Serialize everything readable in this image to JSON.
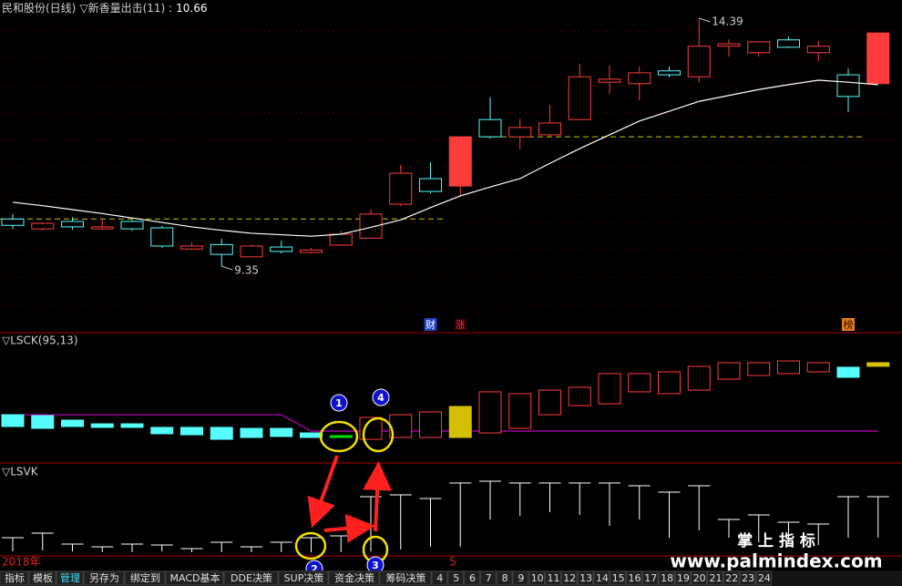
{
  "header": {
    "title": "民和股份(日线)",
    "indicator": "▽新香量出击(11) :",
    "value": 10.66
  },
  "chart_data": [
    {
      "type": "candlestick",
      "categories": [
        "2018年",
        null,
        null,
        null,
        null,
        null,
        null,
        null,
        null,
        null,
        null,
        null,
        null,
        null,
        null,
        "5",
        null,
        null,
        null,
        null,
        null,
        null,
        null,
        null,
        null,
        null,
        null,
        null,
        null,
        null
      ],
      "open": [
        10.31,
        10.11,
        10.26,
        10.11,
        10.26,
        10.13,
        9.7,
        9.79,
        9.54,
        9.74,
        9.63,
        9.78,
        9.92,
        10.61,
        11.13,
        10.98,
        12.33,
        11.98,
        12.02,
        12.33,
        13.09,
        13.06,
        13.32,
        13.2,
        13.82,
        13.69,
        13.95,
        13.69,
        13.24,
        13.06
      ],
      "high": [
        10.41,
        10.24,
        10.35,
        10.31,
        10.29,
        10.17,
        9.83,
        9.91,
        9.79,
        9.87,
        9.72,
        10.07,
        10.5,
        11.41,
        11.46,
        11.98,
        12.78,
        12.35,
        12.63,
        13.46,
        13.43,
        13.41,
        13.41,
        14.39,
        13.96,
        13.91,
        14.02,
        13.93,
        13.37,
        14.09
      ],
      "low": [
        10.11,
        10.07,
        10.09,
        10.09,
        10.07,
        9.72,
        9.68,
        9.35,
        9.54,
        9.61,
        9.61,
        9.76,
        9.91,
        10.57,
        10.83,
        10.78,
        11.94,
        11.72,
        11.98,
        12.33,
        12.85,
        12.72,
        13.19,
        13.09,
        13.61,
        13.61,
        13.78,
        13.52,
        12.48,
        13.06
      ],
      "close": [
        10.18,
        10.22,
        10.15,
        10.15,
        10.11,
        9.76,
        9.76,
        9.59,
        9.76,
        9.65,
        9.68,
        10.0,
        10.41,
        11.24,
        10.87,
        11.98,
        11.98,
        12.17,
        12.26,
        13.2,
        13.15,
        13.28,
        13.24,
        13.82,
        13.87,
        13.91,
        13.8,
        13.82,
        12.8,
        14.09
      ],
      "filled": [
        false,
        false,
        false,
        false,
        false,
        false,
        false,
        false,
        false,
        false,
        false,
        false,
        false,
        false,
        false,
        true,
        false,
        false,
        false,
        false,
        false,
        false,
        false,
        false,
        false,
        false,
        false,
        false,
        false,
        true
      ],
      "up_color": "#ff3c3c",
      "down_color": "#54fcfc",
      "ylim": [
        8.0,
        14.76
      ],
      "ma": {
        "color": "#ffffff",
        "values": [
          10.65,
          10.58,
          10.5,
          10.42,
          10.33,
          10.24,
          10.15,
          10.08,
          10.02,
          9.99,
          9.96,
          10.0,
          10.14,
          10.29,
          10.54,
          10.78,
          10.96,
          11.13,
          11.44,
          11.74,
          12.02,
          12.3,
          12.5,
          12.7,
          12.82,
          12.94,
          13.04,
          13.13,
          13.09,
          13.04
        ]
      },
      "levels": [
        {
          "value": 10.31,
          "color": "#c8c800"
        },
        {
          "value": 11.98,
          "color": "#c8c800"
        }
      ]
    },
    {
      "type": "candlestick",
      "title": "▽LSCK(95,13)",
      "open": [
        37.0,
        36.3,
        32.6,
        29.6,
        29.6,
        26.7,
        26.7,
        26.7,
        25.9,
        25.9,
        22.2,
        20.0,
        17.0,
        18.5,
        18.5,
        18.5,
        22.2,
        25.9,
        37.0,
        44.4,
        45.9,
        55.6,
        54.1,
        57.0,
        65.9,
        68.9,
        70.4,
        71.9,
        75.6,
        79.3
      ],
      "close": [
        27.4,
        25.9,
        27.4,
        26.7,
        26.7,
        21.5,
        20.7,
        17.0,
        18.5,
        19.3,
        18.5,
        20.0,
        34.8,
        37.0,
        39.3,
        43.7,
        55.6,
        54.1,
        57.0,
        59.3,
        70.4,
        70.4,
        71.9,
        76.3,
        79.3,
        79.3,
        80.7,
        79.3,
        67.4,
        76.3
      ],
      "colors": [
        "#54fcfc",
        "#54fcfc",
        "#54fcfc",
        "#54fcfc",
        "#54fcfc",
        "#54fcfc",
        "#54fcfc",
        "#54fcfc",
        "#54fcfc",
        "#54fcfc",
        "#54fcfc",
        "#00e000",
        "#ff3c3c",
        "#ff3c3c",
        "#ff3c3c",
        "#d4c000",
        "#ff3c3c",
        "#ff3c3c",
        "#ff3c3c",
        "#ff3c3c",
        "#ff3c3c",
        "#ff3c3c",
        "#ff3c3c",
        "#ff3c3c",
        "#ff3c3c",
        "#ff3c3c",
        "#ff3c3c",
        "#ff3c3c",
        "#54fcfc",
        "#d4c000"
      ],
      "filled": [
        true,
        true,
        true,
        true,
        true,
        true,
        true,
        true,
        true,
        true,
        true,
        true,
        false,
        false,
        false,
        true,
        false,
        false,
        false,
        false,
        false,
        false,
        false,
        false,
        false,
        false,
        false,
        false,
        true,
        true
      ],
      "ylim": [
        0,
        100
      ],
      "line": {
        "color": "#c000c0",
        "values": [
          37.0,
          37.0,
          37.0,
          37.0,
          37.0,
          37.0,
          37.0,
          37.0,
          37.0,
          37.0,
          23.7,
          23.7,
          23.7,
          23.7,
          23.7,
          23.7,
          23.7,
          23.7,
          23.7,
          23.7,
          23.7,
          23.7,
          23.7,
          23.7,
          23.7,
          23.7,
          23.7,
          23.7,
          23.7,
          23.7
        ]
      }
    },
    {
      "type": "stick",
      "title": "▽LSVK",
      "color": "#ffffff",
      "high": [
        18.8,
        24.0,
        11.5,
        8.3,
        11.5,
        10.4,
        6.3,
        13.5,
        8.3,
        13.5,
        18.8,
        20.8,
        65.6,
        67.7,
        63.5,
        81.3,
        83.3,
        81.3,
        81.3,
        81.3,
        81.3,
        78.1,
        70.8,
        78.1,
        39.6,
        44.8,
        36.5,
        34.4,
        65.6,
        65.6
      ],
      "low": [
        3.1,
        4.2,
        3.1,
        2.1,
        2.1,
        3.1,
        2.1,
        2.1,
        2.1,
        2.1,
        2.1,
        2.1,
        3.1,
        5.2,
        8.3,
        8.3,
        39.6,
        43.8,
        47.9,
        44.8,
        32.3,
        39.6,
        18.8,
        27.1,
        18.8,
        13.5,
        12.5,
        10.4,
        18.8,
        18.8
      ],
      "ylim": [
        0,
        100
      ]
    }
  ],
  "markers": [
    "财",
    "涨",
    "榜"
  ],
  "annotations": [
    "1",
    "2",
    "3",
    "4"
  ],
  "watermark": {
    "title": "掌 上 指 标",
    "url": "www.palmindex.com"
  },
  "toolbar": {
    "tabs": [
      "指标",
      "模板",
      "管理",
      "另存为",
      "绑定到",
      "MACD基本",
      "DDE决策",
      "SUP决策",
      "资金决策",
      "筹码决策",
      "4",
      "5",
      "6",
      "7",
      "8",
      "9",
      "10",
      "11",
      "12",
      "13",
      "14",
      "15",
      "16",
      "17",
      "18",
      "19",
      "20",
      "21",
      "22",
      "23",
      "24"
    ]
  }
}
